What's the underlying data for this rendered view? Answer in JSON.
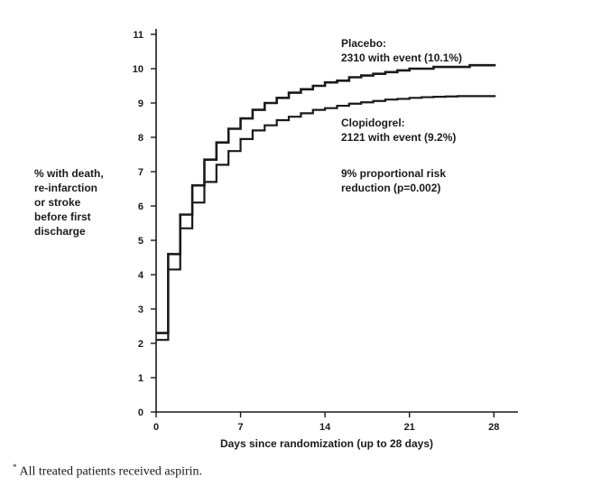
{
  "chart_data": {
    "type": "line",
    "xlabel": "Days since randomization (up to 28 days)",
    "ylabel_lines": [
      "% with death,",
      "re-infarction",
      "or stroke",
      "before first",
      "discharge"
    ],
    "xlim": [
      0,
      30
    ],
    "ylim": [
      0,
      11
    ],
    "xticks": [
      0,
      7,
      14,
      21,
      28
    ],
    "yticks": [
      0,
      1,
      2,
      3,
      4,
      5,
      6,
      7,
      8,
      9,
      10,
      11
    ],
    "grid": false,
    "series": [
      {
        "name": "Placebo",
        "x": [
          0,
          1,
          2,
          3,
          4,
          5,
          6,
          7,
          8,
          9,
          10,
          11,
          12,
          13,
          14,
          15,
          16,
          17,
          18,
          19,
          20,
          21,
          22,
          23,
          24,
          25,
          26,
          27,
          28
        ],
        "y": [
          2.3,
          4.6,
          5.75,
          6.6,
          7.35,
          7.85,
          8.25,
          8.55,
          8.8,
          9.0,
          9.15,
          9.3,
          9.4,
          9.5,
          9.6,
          9.65,
          9.75,
          9.8,
          9.85,
          9.9,
          9.95,
          10.0,
          10.0,
          10.05,
          10.05,
          10.05,
          10.1,
          10.1,
          10.1
        ],
        "color": "#1a1a1a"
      },
      {
        "name": "Clopidogrel",
        "x": [
          0,
          1,
          2,
          3,
          4,
          5,
          6,
          7,
          8,
          9,
          10,
          11,
          12,
          13,
          14,
          15,
          16,
          17,
          18,
          19,
          20,
          21,
          22,
          23,
          24,
          25,
          26,
          27,
          28
        ],
        "y": [
          2.1,
          4.15,
          5.35,
          6.1,
          6.7,
          7.2,
          7.6,
          7.95,
          8.2,
          8.35,
          8.5,
          8.6,
          8.7,
          8.8,
          8.85,
          8.92,
          8.98,
          9.02,
          9.06,
          9.1,
          9.12,
          9.15,
          9.17,
          9.18,
          9.19,
          9.2,
          9.2,
          9.2,
          9.2
        ],
        "color": "#1a1a1a"
      }
    ],
    "annotations": [
      {
        "id": "placebo",
        "lines": [
          "Placebo:",
          "2310 with event (10.1%)"
        ]
      },
      {
        "id": "clopidogrel",
        "lines": [
          "Clopidogrel:",
          "2121 with event (9.2%)"
        ]
      },
      {
        "id": "risk",
        "lines": [
          "9% proportional risk",
          "reduction (p=0.002)"
        ]
      }
    ]
  },
  "footnote": {
    "marker": "*",
    "text": "All treated patients received aspirin."
  }
}
